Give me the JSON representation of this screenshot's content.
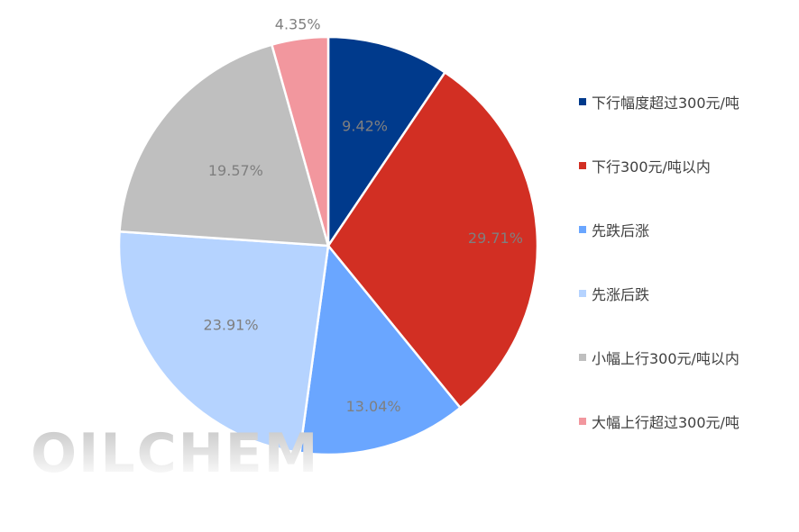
{
  "chart_data": {
    "type": "pie",
    "title": "",
    "categories": [
      "下行幅度超过300元/吨",
      "下行300元/吨以内",
      "先跌后涨",
      "先涨后跌",
      "小幅上行300元/吨以内",
      "大幅上行超过300元/吨"
    ],
    "values": [
      9.42,
      29.71,
      13.04,
      23.91,
      19.57,
      4.35
    ],
    "labels": [
      "9.42%",
      "29.71%",
      "13.04%",
      "23.91%",
      "19.57%",
      "4.35%"
    ],
    "colors": [
      "#003A8C",
      "#D22F23",
      "#6AA6FF",
      "#B5D3FF",
      "#BFBFBF",
      "#F2979E"
    ],
    "start_angle": "12 o'clock",
    "direction": "clockwise",
    "legend_position": "right"
  },
  "watermark": {
    "text": "OILCHEM"
  }
}
